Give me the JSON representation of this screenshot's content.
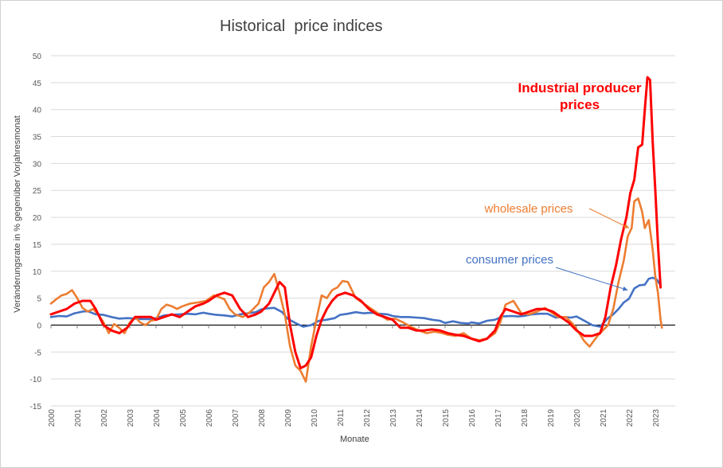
{
  "chart_data": {
    "type": "line",
    "title": "Historical  price indices",
    "xlabel": "Monate",
    "ylabel": "Veränderungsrate in % gegenüber Vorjahresmonat",
    "ylim": [
      -15,
      50
    ],
    "xlim": [
      2000,
      2023.4
    ],
    "yticks": [
      -15,
      -10,
      -5,
      0,
      5,
      10,
      15,
      20,
      25,
      30,
      35,
      40,
      45,
      50
    ],
    "xticks": [
      "2000",
      "2001",
      "2002",
      "2003",
      "2004",
      "2005",
      "2006",
      "2007",
      "2008",
      "2009",
      "2010",
      "2011",
      "2012",
      "2013",
      "2014",
      "2015",
      "2016",
      "2017",
      "2018",
      "2019",
      "2020",
      "2021",
      "2022",
      "2023"
    ],
    "grid": true,
    "series": [
      {
        "name": "consumer prices",
        "color": "#4472C4",
        "x": [
          2000.0,
          2000.3,
          2000.6,
          2000.9,
          2001.2,
          2001.4,
          2001.7,
          2002.0,
          2002.3,
          2002.6,
          2002.9,
          2003.2,
          2003.5,
          2003.8,
          2004.0,
          2004.3,
          2004.6,
          2004.9,
          2005.2,
          2005.5,
          2005.8,
          2006.0,
          2006.3,
          2006.6,
          2006.9,
          2007.2,
          2007.5,
          2007.8,
          2008.0,
          2008.2,
          2008.5,
          2008.8,
          2009.0,
          2009.3,
          2009.6,
          2009.9,
          2010.2,
          2010.5,
          2010.8,
          2011.0,
          2011.3,
          2011.6,
          2011.9,
          2012.2,
          2012.5,
          2012.8,
          2013.0,
          2013.3,
          2013.6,
          2013.9,
          2014.2,
          2014.5,
          2014.8,
          2015.0,
          2015.3,
          2015.6,
          2015.9,
          2016.0,
          2016.3,
          2016.6,
          2016.9,
          2017.2,
          2017.5,
          2017.8,
          2018.0,
          2018.3,
          2018.6,
          2018.9,
          2019.2,
          2019.5,
          2019.8,
          2020.0,
          2020.3,
          2020.6,
          2020.9,
          2021.2,
          2021.4,
          2021.6,
          2021.8,
          2022.0,
          2022.2,
          2022.4,
          2022.6,
          2022.75,
          2022.9,
          2023.05,
          2023.2
        ],
        "values": [
          1.5,
          1.7,
          1.6,
          2.2,
          2.5,
          2.6,
          2.0,
          1.9,
          1.5,
          1.2,
          1.3,
          1.2,
          1.1,
          1.1,
          1.3,
          1.8,
          1.9,
          2.0,
          2.1,
          2.0,
          2.3,
          2.1,
          1.9,
          1.8,
          1.6,
          2.0,
          2.2,
          2.4,
          2.9,
          3.1,
          3.2,
          2.4,
          1.2,
          0.4,
          -0.3,
          0.0,
          0.8,
          1.0,
          1.3,
          1.9,
          2.1,
          2.4,
          2.2,
          2.3,
          2.1,
          2.0,
          1.7,
          1.5,
          1.5,
          1.4,
          1.3,
          1.0,
          0.8,
          0.4,
          0.7,
          0.4,
          0.3,
          0.5,
          0.3,
          0.8,
          1.0,
          1.6,
          1.7,
          1.6,
          1.7,
          2.0,
          2.1,
          2.1,
          1.4,
          1.5,
          1.4,
          1.6,
          0.8,
          0.0,
          -0.3,
          1.3,
          2.0,
          3.0,
          4.2,
          4.9,
          6.8,
          7.4,
          7.5,
          8.6,
          8.8,
          8.5,
          7.4
        ]
      },
      {
        "name": "wholesale prices",
        "color": "#ED7D31",
        "x": [
          2000.0,
          2000.2,
          2000.4,
          2000.6,
          2000.8,
          2001.0,
          2001.2,
          2001.4,
          2001.6,
          2001.8,
          2002.0,
          2002.2,
          2002.4,
          2002.6,
          2002.8,
          2003.0,
          2003.2,
          2003.4,
          2003.6,
          2003.8,
          2004.0,
          2004.2,
          2004.4,
          2004.6,
          2004.8,
          2005.0,
          2005.3,
          2005.6,
          2005.9,
          2006.2,
          2006.4,
          2006.6,
          2006.8,
          2007.0,
          2007.3,
          2007.6,
          2007.9,
          2008.1,
          2008.3,
          2008.5,
          2008.7,
          2008.9,
          2009.1,
          2009.3,
          2009.5,
          2009.7,
          2009.9,
          2010.1,
          2010.3,
          2010.5,
          2010.7,
          2010.9,
          2011.1,
          2011.3,
          2011.6,
          2011.9,
          2012.2,
          2012.5,
          2012.8,
          2013.1,
          2013.4,
          2013.7,
          2014.0,
          2014.3,
          2014.6,
          2014.9,
          2015.1,
          2015.4,
          2015.7,
          2016.0,
          2016.3,
          2016.6,
          2016.9,
          2017.1,
          2017.3,
          2017.6,
          2017.9,
          2018.2,
          2018.5,
          2018.8,
          2019.0,
          2019.3,
          2019.6,
          2019.9,
          2020.1,
          2020.3,
          2020.5,
          2020.8,
          2021.0,
          2021.2,
          2021.4,
          2021.6,
          2021.8,
          2021.95,
          2022.1,
          2022.2,
          2022.35,
          2022.5,
          2022.6,
          2022.75,
          2022.9,
          2023.0,
          2023.1,
          2023.2,
          2023.25
        ],
        "values": [
          4.0,
          4.8,
          5.5,
          5.8,
          6.5,
          5.0,
          3.2,
          2.5,
          3.0,
          2.0,
          0.5,
          -1.5,
          0.2,
          -0.5,
          -1.5,
          0.5,
          1.5,
          0.5,
          0.0,
          0.8,
          1.0,
          3.0,
          3.8,
          3.5,
          3.0,
          3.5,
          4.0,
          4.2,
          4.5,
          5.5,
          5.2,
          4.8,
          3.0,
          2.0,
          1.5,
          2.5,
          4.0,
          7.0,
          8.0,
          9.5,
          6.0,
          2.0,
          -4.0,
          -7.5,
          -8.5,
          -10.5,
          -4.0,
          1.0,
          5.5,
          5.0,
          6.5,
          7.0,
          8.2,
          8.0,
          5.0,
          4.0,
          3.0,
          2.0,
          1.0,
          1.2,
          0.5,
          -0.3,
          -1.0,
          -1.5,
          -1.2,
          -1.5,
          -1.8,
          -2.0,
          -1.5,
          -2.5,
          -2.8,
          -2.5,
          -1.5,
          0.5,
          3.8,
          4.5,
          2.2,
          2.0,
          2.5,
          3.2,
          2.5,
          1.5,
          1.5,
          0.0,
          -1.5,
          -3.0,
          -4.0,
          -2.0,
          -1.0,
          0.0,
          3.0,
          8.0,
          12.0,
          16.5,
          18.0,
          23.0,
          23.5,
          21.0,
          18.0,
          19.5,
          14.0,
          9.0,
          6.0,
          1.0,
          -0.5
        ]
      },
      {
        "name": "Industrial producer prices",
        "color": "#FF0000",
        "x": [
          2000.0,
          2000.3,
          2000.6,
          2000.9,
          2001.2,
          2001.5,
          2001.7,
          2002.0,
          2002.3,
          2002.6,
          2002.9,
          2003.2,
          2003.5,
          2003.8,
          2004.0,
          2004.3,
          2004.6,
          2004.9,
          2005.2,
          2005.5,
          2005.8,
          2006.0,
          2006.3,
          2006.6,
          2006.9,
          2007.2,
          2007.5,
          2007.8,
          2008.0,
          2008.3,
          2008.5,
          2008.7,
          2008.9,
          2009.1,
          2009.3,
          2009.5,
          2009.7,
          2009.9,
          2010.1,
          2010.3,
          2010.5,
          2010.7,
          2010.9,
          2011.2,
          2011.5,
          2011.8,
          2012.1,
          2012.4,
          2012.7,
          2013.0,
          2013.3,
          2013.6,
          2013.9,
          2014.2,
          2014.5,
          2014.8,
          2015.1,
          2015.4,
          2015.7,
          2016.0,
          2016.3,
          2016.6,
          2016.9,
          2017.1,
          2017.3,
          2017.6,
          2017.9,
          2018.2,
          2018.5,
          2018.8,
          2019.1,
          2019.4,
          2019.7,
          2020.0,
          2020.3,
          2020.6,
          2020.9,
          2021.1,
          2021.3,
          2021.5,
          2021.7,
          2021.9,
          2022.05,
          2022.2,
          2022.35,
          2022.5,
          2022.6,
          2022.7,
          2022.8,
          2022.9,
          2023.0,
          2023.1,
          2023.2
        ],
        "values": [
          2.0,
          2.5,
          3.0,
          4.0,
          4.5,
          4.5,
          3.0,
          0.0,
          -1.0,
          -1.5,
          -0.5,
          1.5,
          1.5,
          1.5,
          1.0,
          1.5,
          2.0,
          1.5,
          2.5,
          3.5,
          4.0,
          4.5,
          5.5,
          6.0,
          5.5,
          3.0,
          1.5,
          2.0,
          2.5,
          4.0,
          6.0,
          8.0,
          7.0,
          0.0,
          -5.0,
          -8.0,
          -7.5,
          -6.0,
          -2.0,
          1.0,
          3.0,
          4.5,
          5.5,
          6.0,
          5.5,
          4.5,
          3.0,
          2.0,
          1.5,
          1.0,
          -0.5,
          -0.5,
          -1.0,
          -1.0,
          -0.8,
          -1.0,
          -1.5,
          -1.8,
          -2.0,
          -2.5,
          -3.0,
          -2.5,
          -1.0,
          1.5,
          3.0,
          2.5,
          2.0,
          2.5,
          3.0,
          3.0,
          2.5,
          1.5,
          0.5,
          -1.0,
          -2.0,
          -2.0,
          -1.5,
          1.5,
          7.0,
          11.0,
          16.0,
          20.0,
          24.5,
          27.0,
          33.0,
          33.5,
          40.0,
          46.0,
          45.5,
          34.0,
          25.0,
          15.0,
          7.0
        ]
      }
    ],
    "annotations": [
      {
        "series": "Industrial producer prices",
        "lines": [
          "Industrial producer",
          "prices"
        ],
        "color": "#FF0000",
        "arrow": false
      },
      {
        "series": "wholesale prices",
        "lines": [
          "wholesale prices"
        ],
        "color": "#ED7D31",
        "arrow": true,
        "target": [
          2022.0,
          18.0
        ]
      },
      {
        "series": "consumer prices",
        "lines": [
          "consumer prices"
        ],
        "color": "#4472C4",
        "arrow": true,
        "target": [
          2021.95,
          6.5
        ]
      }
    ]
  }
}
